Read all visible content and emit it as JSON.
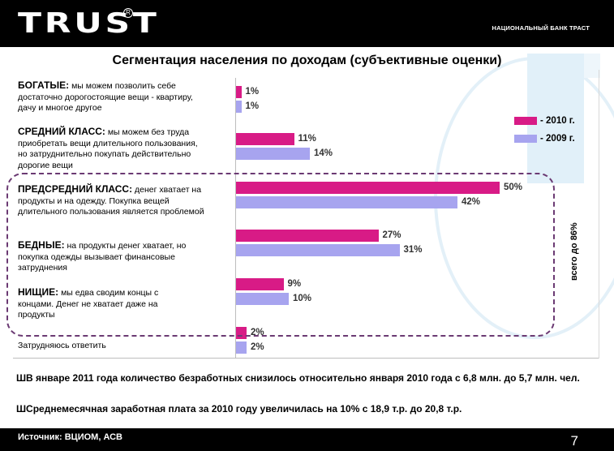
{
  "header": {
    "logo": "TRUST",
    "reg": "R",
    "bank": "НАЦИОНАЛЬНЫЙ БАНК ТРАСТ"
  },
  "colors": {
    "y2010": "#d81b86",
    "y2009": "#a7a4ef"
  },
  "chart_data": {
    "type": "bar",
    "orientation": "horizontal",
    "title": "Сегментация населения по доходам (субъективные оценки)",
    "categories": [
      {
        "name": "БОГАТЫЕ:",
        "desc": " мы можем позволить себе достаточно дорогостоящие вещи - квартиру, дачу и многое другое"
      },
      {
        "name": "СРЕДНИЙ КЛАСС:",
        "desc": " мы можем без труда приобретать вещи длительного пользования, но затруднительно покупать действительно дорогие вещи"
      },
      {
        "name": "ПРЕДСРЕДНИЙ КЛАСС:",
        "desc": " денег хватает на продукты и на одежду. Покупка вещей длительного пользования является проблемой"
      },
      {
        "name": "БЕДНЫЕ:",
        "desc": " на продукты денег хватает, но покупка одежды вызывает финансовые затруднения"
      },
      {
        "name": "НИЩИЕ:",
        "desc": " мы едва сводим концы с концами. Денег не хватает даже на продукты"
      },
      {
        "name": "",
        "desc": "Затрудняюсь ответить"
      }
    ],
    "series": [
      {
        "name": "- 2010 г.",
        "values": [
          1,
          11,
          50,
          27,
          9,
          2
        ]
      },
      {
        "name": "- 2009 г.",
        "values": [
          1,
          14,
          42,
          31,
          10,
          2
        ]
      }
    ],
    "value_labels": {
      "s2010": [
        "1%",
        "11%",
        "50%",
        "27%",
        "9%",
        "2%"
      ],
      "s2009": [
        "1%",
        "14%",
        "42%",
        "31%",
        "10%",
        "2%"
      ]
    },
    "xlim": [
      0,
      55
    ],
    "group_label": "всего до 86%"
  },
  "notes": [
    "ШВ январе 2011 года количество безработных  снизилось относительно января 2010 года с  6,8 млн. до 5,7 млн. чел.",
    "ШСреднемесячная заработная плата за 2010 году увеличилась на 10% с 18,9 т.р. до 20,8 т.р."
  ],
  "footer": {
    "source": "Источник: ВЦИОМ, АСВ",
    "page": "7"
  }
}
